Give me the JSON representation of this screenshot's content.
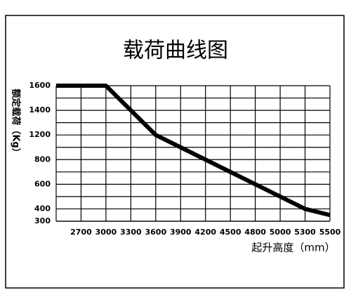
{
  "chart_data": {
    "type": "line",
    "title": "载荷曲线图",
    "x_label": "起升高度（mm）",
    "y_label": "额定载荷（Kg）",
    "x": [
      2400,
      3000,
      3600,
      5300,
      5500
    ],
    "values": [
      1600,
      1600,
      1200,
      400,
      350
    ],
    "color": "#000000",
    "xlim": [
      2400,
      5500
    ],
    "xticks": [
      2700,
      3000,
      3300,
      3600,
      3900,
      4200,
      4500,
      4800,
      5000,
      5300,
      5500
    ],
    "ylim": [
      300,
      1600
    ],
    "yticks": [
      300,
      400,
      600,
      800,
      1200,
      1400,
      1600
    ],
    "grid": true
  }
}
